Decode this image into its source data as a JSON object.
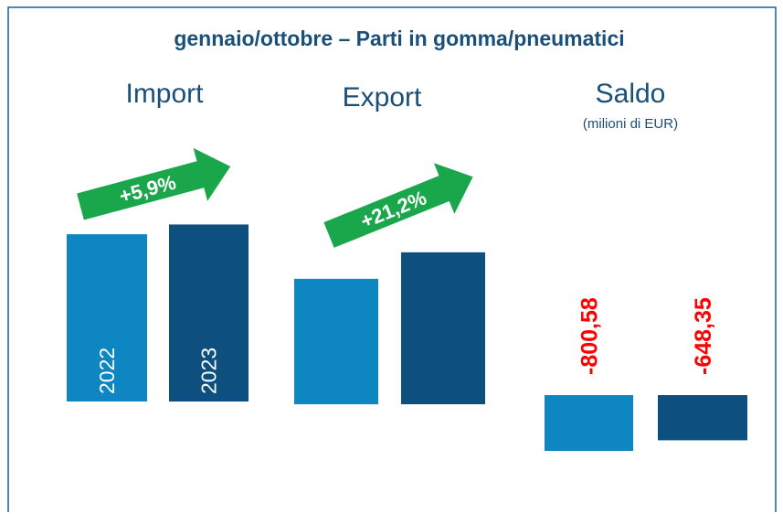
{
  "chart_data": {
    "type": "bar",
    "title": "gennaio/ottobre – Parti in gomma/pneumatici",
    "series": [
      {
        "name": "2022",
        "color": "#0e86c1"
      },
      {
        "name": "2023",
        "color": "#0d4f7f"
      }
    ],
    "groups": [
      {
        "label": "Import",
        "values": [
          2400,
          2540
        ],
        "change": "+5,9%"
      },
      {
        "label": "Export",
        "values": [
          1800,
          2180
        ],
        "change": "+21,2%"
      },
      {
        "label": "Saldo",
        "note": "(milioni di EUR)",
        "values": [
          -800.58,
          -648.35
        ],
        "value_labels": [
          "-800,58",
          "-648,35"
        ]
      }
    ]
  }
}
